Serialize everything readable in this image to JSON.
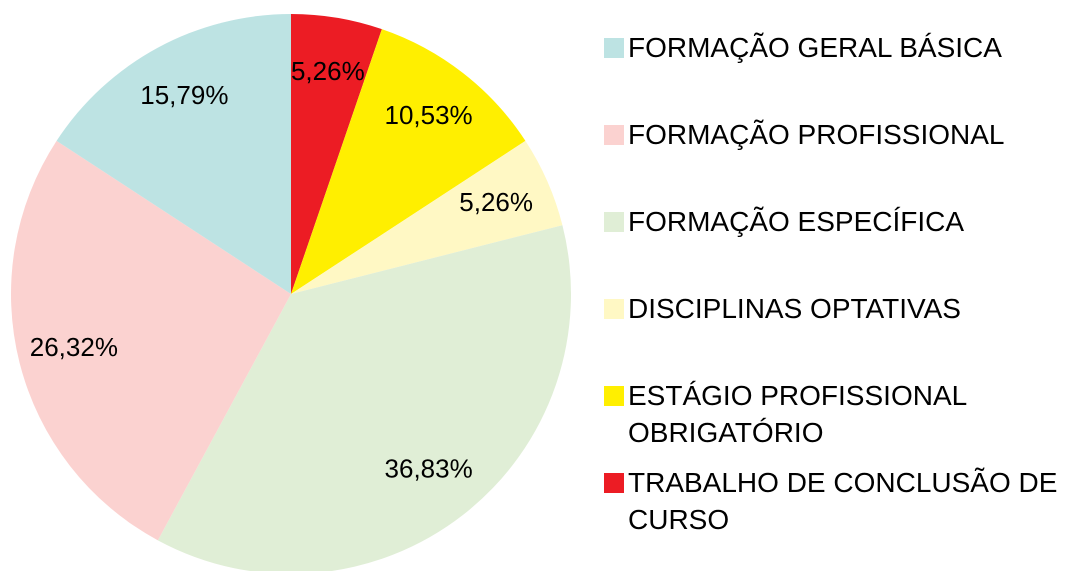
{
  "chart_data": {
    "type": "pie",
    "categories": [
      "FORMAÇÃO GERAL BÁSICA",
      "FORMAÇÃO PROFISSIONAL",
      "FORMAÇÃO ESPECÍFICA",
      "DISCIPLINAS OPTATIVAS",
      "ESTÁGIO PROFISSIONAL OBRIGATÓRIO",
      "TRABALHO DE CONCLUSÃO DE CURSO"
    ],
    "values": [
      15.79,
      26.32,
      36.83,
      5.26,
      10.53,
      5.26
    ],
    "value_labels": [
      "15,79%",
      "26,32%",
      "36,83%",
      "5,26%",
      "10,53%",
      "5,26%"
    ],
    "colors": [
      "#bde3e3",
      "#fbd2d0",
      "#e0eed6",
      "#fff8c4",
      "#ffef00",
      "#ec1c24"
    ],
    "legend": "right"
  }
}
